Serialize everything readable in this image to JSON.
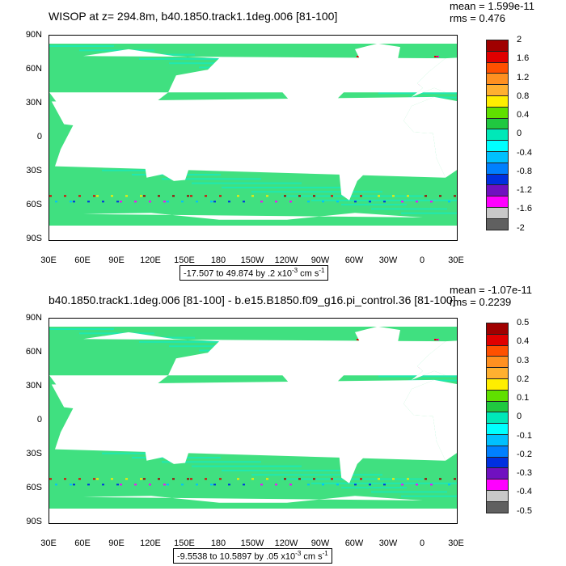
{
  "panels": [
    {
      "title": "WISOP at z= 294.8m, b40.1850.track1.1deg.006 [81-100]",
      "mean_label": "mean = 1.599e-11",
      "rms_label": "rms = 0.476",
      "range_label": "-17.507 to 49.874 by .2 x10",
      "range_exp": "-3",
      "range_units": " cm s",
      "range_units_exp": "-1",
      "lat_labels": [
        "90N",
        "60N",
        "30N",
        "0",
        "30S",
        "60S",
        "90S"
      ],
      "lon_labels": [
        "30E",
        "60E",
        "90E",
        "120E",
        "150E",
        "180",
        "150W",
        "120W",
        "90W",
        "60W",
        "30W",
        "0",
        "30E"
      ],
      "colorbar_labels": [
        "2",
        "1.6",
        "1.2",
        "0.8",
        "0.4",
        "0",
        "-0.4",
        "-0.8",
        "-1.2",
        "-1.6",
        "-2"
      ]
    },
    {
      "title": "b40.1850.track1.1deg.006 [81-100] - b.e15.B1850.f09_g16.pi_control.36 [81-100]",
      "mean_label": "mean = -1.07e-11",
      "rms_label": "rms = 0.2239",
      "range_label": "-9.5538 to 10.5897 by .05 x10",
      "range_exp": "-3",
      "range_units": " cm s",
      "range_units_exp": "-1",
      "lat_labels": [
        "90N",
        "60N",
        "30N",
        "0",
        "30S",
        "60S",
        "90S"
      ],
      "lon_labels": [
        "30E",
        "60E",
        "90E",
        "120E",
        "150E",
        "180",
        "150W",
        "120W",
        "90W",
        "60W",
        "30W",
        "0",
        "30E"
      ],
      "colorbar_labels": [
        "0.5",
        "0.4",
        "0.3",
        "0.2",
        "0.1",
        "0",
        "-0.1",
        "-0.2",
        "-0.3",
        "-0.4",
        "-0.5"
      ]
    }
  ],
  "colorbar_colors": [
    "#a00000",
    "#e00000",
    "#ff5000",
    "#ff9020",
    "#ffb030",
    "#ffee00",
    "#60e000",
    "#20c840",
    "#00e8b8",
    "#00ffff",
    "#00c0ff",
    "#0080ff",
    "#0030e0",
    "#7010c0",
    "#ff00ff",
    "#c8c8c8",
    "#606060"
  ],
  "map_colors": {
    "ocean_base": "#40e080",
    "ocean_alt": "#20e8b0",
    "land": "#ffffff"
  }
}
